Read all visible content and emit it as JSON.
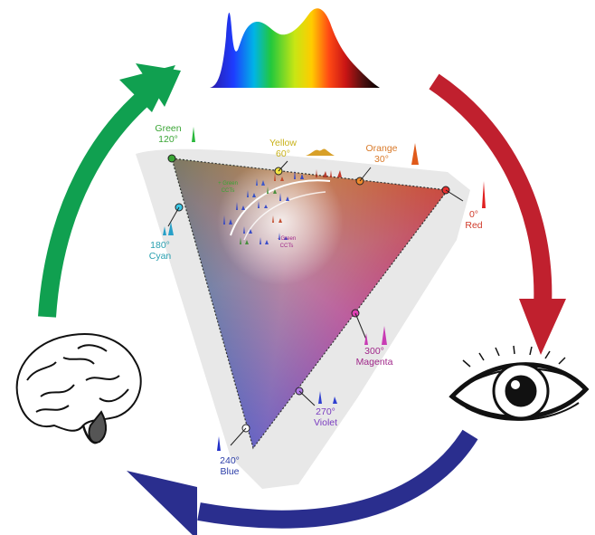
{
  "hues": {
    "green": {
      "name": "Green",
      "degree": "120°",
      "color": "#3aa535"
    },
    "yellow": {
      "name": "Yellow",
      "degree": "60°",
      "color": "#c9b21a"
    },
    "orange": {
      "name": "Orange",
      "degree": "30°",
      "color": "#d97a2a"
    },
    "red": {
      "name": "Red",
      "degree": "0°",
      "color": "#d03a2a"
    },
    "cyan": {
      "name": "Cyan",
      "degree": "180°",
      "color": "#2aa0b0"
    },
    "magenta": {
      "name": "Magenta",
      "degree": "300°",
      "color": "#a0288a"
    },
    "violet": {
      "name": "Violet",
      "degree": "270°",
      "color": "#7a3cc0"
    },
    "blue": {
      "name": "Blue",
      "degree": "240°",
      "color": "#2b3da8"
    }
  },
  "cct": {
    "plus": {
      "sign": "+ Green",
      "word": "CCTs",
      "color": "#3aa535"
    },
    "minus": {
      "sign": "- Green",
      "word": "CCTs",
      "color": "#a0288a"
    }
  },
  "cycle_colors": {
    "green_arrow": "#10a050",
    "red_arrow": "#c0202e",
    "blue_arrow": "#2a2e8e"
  },
  "icons": {
    "top": "spectrum-icon",
    "right": "eye-icon",
    "left": "brain-icon"
  }
}
